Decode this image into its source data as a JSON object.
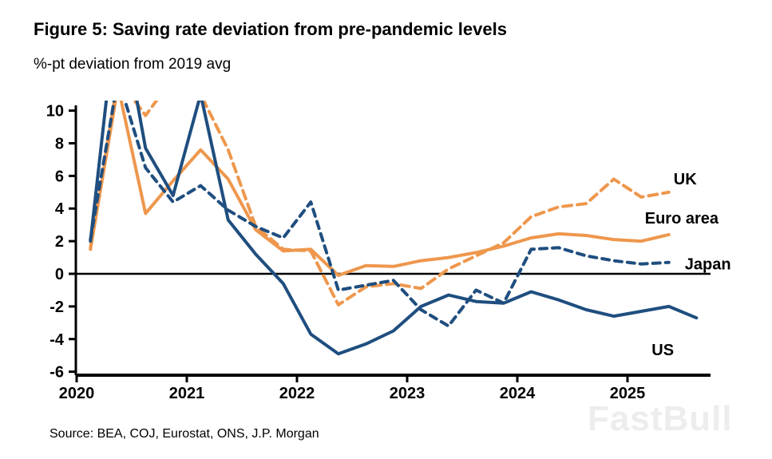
{
  "watermark": "FastBull",
  "chart_data": {
    "type": "line",
    "title": "Figure 5: Saving rate deviation from pre-pandemic levels",
    "subtitle": "%-pt deviation from 2019 avg",
    "source": "Source: BEA, COJ, Eurostat, ONS, J.P. Morgan",
    "grid": false,
    "legend_position": "end-of-line-labels",
    "ylim": [
      -6,
      10
    ],
    "y_ticks": [
      10,
      8,
      6,
      4,
      2,
      0,
      -2,
      -4,
      -6
    ],
    "x_axis_ticks": [
      "2020",
      "2021",
      "2022",
      "2023",
      "2024",
      "2025"
    ],
    "zero_line": true,
    "colors": {
      "orange": "#EE974D",
      "blue": "#1F4E7F",
      "axis": "#000000"
    },
    "categories": [
      "2020 Q1",
      "2020 Q2",
      "2020 Q3",
      "2020 Q4",
      "2021 Q1",
      "2021 Q2",
      "2021 Q3",
      "2021 Q4",
      "2022 Q1",
      "2022 Q2",
      "2022 Q3",
      "2022 Q4",
      "2023 Q1",
      "2023 Q2",
      "2023 Q3",
      "2023 Q4",
      "2024 Q1",
      "2024 Q2",
      "2024 Q3",
      "2024 Q4",
      "2025 Q1",
      "2025 Q2",
      "2025 Q3"
    ],
    "series": [
      {
        "name": "UK",
        "color": "#EE974D",
        "dash": "dashed",
        "values": [
          1.6,
          12,
          9.7,
          12,
          11,
          7.6,
          2.9,
          1.5,
          1.4,
          -1.9,
          -0.8,
          -0.6,
          -0.9,
          0.3,
          1.1,
          1.9,
          3.5,
          4.1,
          4.3,
          5.8,
          4.7,
          5.0,
          null
        ]
      },
      {
        "name": "Euro area",
        "color": "#EE974D",
        "dash": "solid",
        "values": [
          1.5,
          11.5,
          3.7,
          5.7,
          7.6,
          5.8,
          2.7,
          1.4,
          1.5,
          -0.1,
          0.5,
          0.45,
          0.8,
          1.0,
          1.3,
          1.7,
          2.2,
          2.45,
          2.35,
          2.1,
          2.0,
          2.4,
          null
        ]
      },
      {
        "name": "Japan",
        "color": "#1F4E7F",
        "dash": "dashed",
        "values": [
          2.1,
          12,
          6.5,
          4.4,
          5.4,
          3.9,
          2.9,
          2.2,
          4.4,
          -1.0,
          -0.7,
          -0.4,
          -2.2,
          -3.2,
          -1.0,
          -1.8,
          1.5,
          1.6,
          1.1,
          0.8,
          0.6,
          0.7,
          null
        ]
      },
      {
        "name": "US",
        "color": "#1F4E7F",
        "dash": "solid",
        "values": [
          2.0,
          17,
          7.7,
          4.8,
          11,
          3.3,
          1.2,
          -0.6,
          -3.7,
          -4.9,
          -4.3,
          -3.5,
          -2.0,
          -1.3,
          -1.7,
          -1.8,
          -1.1,
          -1.6,
          -2.2,
          -2.6,
          -2.3,
          -2.0,
          -2.7
        ]
      }
    ],
    "notes": "Values above 10 are clipped at the top of the plot (pandemic spikes)."
  }
}
